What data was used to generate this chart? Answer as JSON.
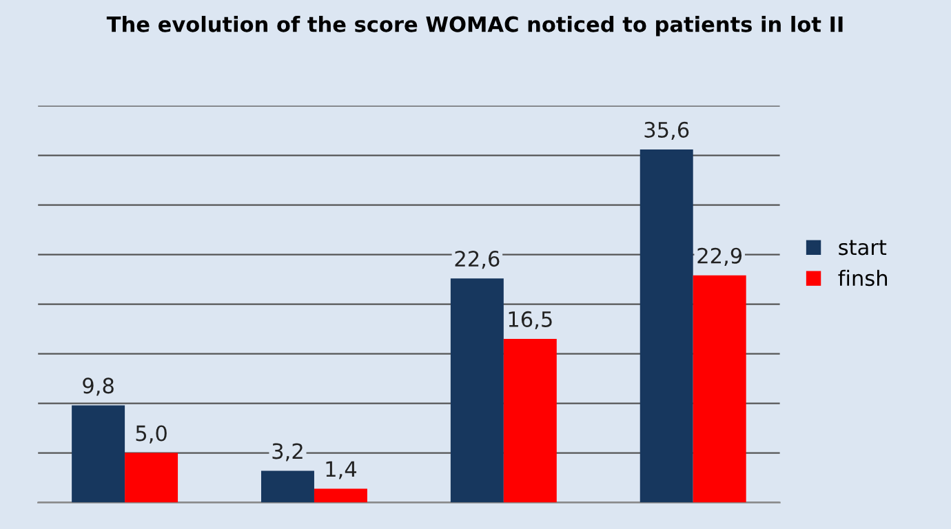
{
  "chart_data": {
    "type": "bar",
    "title": "The evolution of the score WOMAC noticed to patients in lot II",
    "categories": [
      null,
      null,
      null,
      null
    ],
    "series": [
      {
        "name": "start",
        "color": "#17375e",
        "values": [
          9.8,
          3.2,
          22.6,
          35.6
        ],
        "value_labels": [
          "9,8",
          "3,2",
          "22,6",
          "35,6"
        ]
      },
      {
        "name": "finsh",
        "color": "#ff0000",
        "values": [
          5.0,
          1.4,
          16.5,
          22.9
        ],
        "value_labels": [
          "5,0",
          "1,4",
          "16,5",
          "22,9"
        ]
      }
    ],
    "ylim": [
      0,
      40
    ],
    "yticks": [
      {
        "value": 0,
        "label": null
      },
      {
        "value": 5,
        "label": null
      },
      {
        "value": 10,
        "label": null
      },
      {
        "value": 15,
        "label": null
      },
      {
        "value": 20,
        "label": null
      },
      {
        "value": 25,
        "label": null
      },
      {
        "value": 30,
        "label": null
      },
      {
        "value": 35,
        "label": null
      },
      {
        "value": 40,
        "label": null
      }
    ],
    "grid": "y",
    "legend": "right"
  }
}
